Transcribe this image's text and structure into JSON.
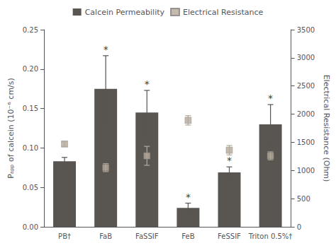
{
  "chart_data": {
    "type": "bar",
    "categories": [
      "PB†",
      "FaB",
      "FaSSIF",
      "FeB",
      "FeSSIF",
      "Triton 0.5%†"
    ],
    "series": [
      {
        "name": "Calcein Permeability",
        "type": "bar",
        "color": "#595550",
        "values": [
          0.083,
          0.175,
          0.145,
          0.024,
          0.069,
          0.13
        ],
        "errors": [
          0.005,
          0.042,
          0.028,
          0.006,
          0.007,
          0.025
        ]
      },
      {
        "name": "Electrical Resistance",
        "type": "scatter",
        "marker": "square",
        "color": "#b5aa9a",
        "axis": "y2",
        "values": [
          1470,
          1050,
          1260,
          1890,
          1360,
          1260
        ],
        "errors": [
          42,
          70,
          168,
          84,
          84,
          70
        ]
      }
    ],
    "ylabel": "Pₐₚₚ of calcein (10⁻⁶ cm/s)",
    "y2label": "Electrical Resistance (Ohm)",
    "ylim": [
      0,
      0.25
    ],
    "yticks": [
      {
        "value": 0,
        "label": "0.00"
      },
      0.05,
      {
        "value": 0.1,
        "label": "0.10"
      },
      0.15,
      {
        "value": 0.2,
        "label": "0.20"
      },
      0.25
    ],
    "y2lim": [
      0,
      3500
    ],
    "y2ticks": [
      0,
      500,
      1000,
      1500,
      2000,
      2500,
      3000,
      3500
    ],
    "annotations": [
      {
        "category": "FaB",
        "text": "*"
      },
      {
        "category": "FaSSIF",
        "text": "*"
      },
      {
        "category": "FeB",
        "text": "*"
      },
      {
        "category": "FeSSIF",
        "text": "*"
      },
      {
        "category": "Triton 0.5%†",
        "text": "*"
      }
    ],
    "legend": "top",
    "grid": false
  }
}
